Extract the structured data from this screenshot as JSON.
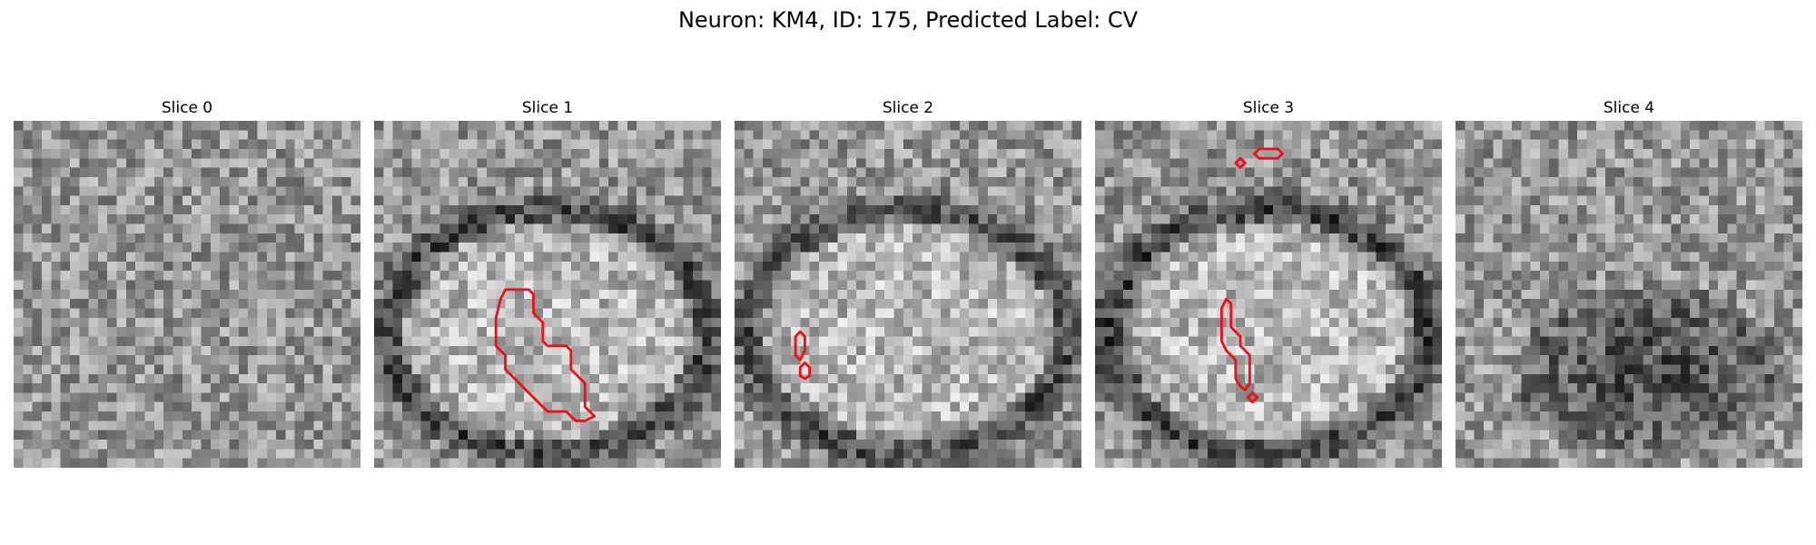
{
  "figure": {
    "title": "Neuron: KM4, ID: 175, Predicted Label: CV"
  },
  "panels": [
    {
      "title": "Slice 0",
      "ring": 0.0,
      "dark_center": false,
      "contours": []
    },
    {
      "title": "Slice 1",
      "ring": 0.9,
      "dark_center": false,
      "contours": [
        [
          [
            14,
            18
          ],
          [
            16.5,
            18
          ],
          [
            17,
            18.5
          ],
          [
            17,
            20.5
          ],
          [
            18,
            21.5
          ],
          [
            18,
            23.5
          ],
          [
            18.5,
            24
          ],
          [
            20.5,
            24
          ],
          [
            21,
            24.5
          ],
          [
            21,
            26.5
          ],
          [
            21.5,
            27
          ],
          [
            22.5,
            28
          ],
          [
            22.5,
            30.5
          ],
          [
            23.5,
            31.5
          ],
          [
            22.5,
            32
          ],
          [
            21.5,
            32
          ],
          [
            20.5,
            31
          ],
          [
            18.5,
            31
          ],
          [
            16.5,
            29
          ],
          [
            14.5,
            27
          ],
          [
            14,
            26.5
          ],
          [
            14,
            25
          ],
          [
            13,
            24
          ],
          [
            13,
            21
          ],
          [
            13.5,
            19
          ]
        ]
      ]
    },
    {
      "title": "Slice 2",
      "ring": 0.85,
      "dark_center": false,
      "contours": [
        [
          [
            7,
            22.5
          ],
          [
            7.5,
            23
          ],
          [
            7.5,
            24.5
          ],
          [
            7,
            25.5
          ],
          [
            6.5,
            25
          ],
          [
            6.5,
            23
          ]
        ],
        [
          [
            7.5,
            25.8
          ],
          [
            8,
            26.3
          ],
          [
            8,
            27.2
          ],
          [
            7.5,
            27.5
          ],
          [
            7,
            27.2
          ],
          [
            7,
            26.3
          ]
        ]
      ]
    },
    {
      "title": "Slice 3",
      "ring": 1.0,
      "dark_center": false,
      "contours": [
        [
          [
            15.5,
            4
          ],
          [
            16,
            4.5
          ],
          [
            15.5,
            5
          ],
          [
            15,
            4.5
          ]
        ],
        [
          [
            17.5,
            3
          ],
          [
            19.5,
            3
          ],
          [
            20,
            3.5
          ],
          [
            19.5,
            4
          ],
          [
            17.5,
            4
          ],
          [
            17,
            3.5
          ]
        ],
        [
          [
            14,
            19
          ],
          [
            14.5,
            19.5
          ],
          [
            14.5,
            22
          ],
          [
            15,
            22.5
          ],
          [
            15.5,
            23
          ],
          [
            15.5,
            24
          ],
          [
            16.5,
            25
          ],
          [
            16.5,
            28
          ],
          [
            16,
            28.7
          ],
          [
            15.5,
            28.3
          ],
          [
            15,
            27.5
          ],
          [
            15,
            25.5
          ],
          [
            14,
            24.5
          ],
          [
            13.5,
            23.5
          ],
          [
            13.5,
            20
          ]
        ],
        [
          [
            16.8,
            29
          ],
          [
            17.3,
            29.5
          ],
          [
            16.8,
            30
          ],
          [
            16.3,
            29.5
          ]
        ]
      ]
    },
    {
      "title": "Slice 4",
      "ring": 0.0,
      "dark_center": true,
      "contours": []
    }
  ],
  "colors": {
    "contour": "#e8141c",
    "background": "#ffffff"
  }
}
